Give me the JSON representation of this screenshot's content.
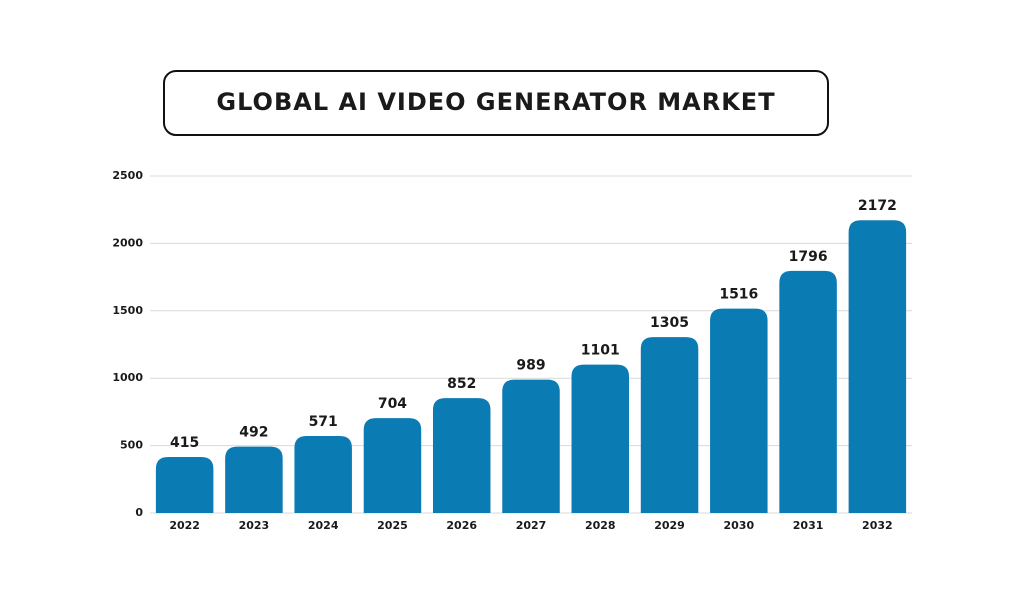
{
  "chart_data": {
    "type": "bar",
    "title": "GLOBAL AI VIDEO GENERATOR MARKET",
    "categories": [
      "2022",
      "2023",
      "2024",
      "2025",
      "2026",
      "2027",
      "2028",
      "2029",
      "2030",
      "2031",
      "2032"
    ],
    "values": [
      415,
      492,
      571,
      704,
      852,
      989,
      1101,
      1305,
      1516,
      1796,
      2172
    ],
    "color": "#0b7bb4",
    "ylim": [
      0,
      2500
    ],
    "yticks": [
      0,
      500,
      1000,
      1500,
      2000,
      2500
    ],
    "grid": true
  }
}
